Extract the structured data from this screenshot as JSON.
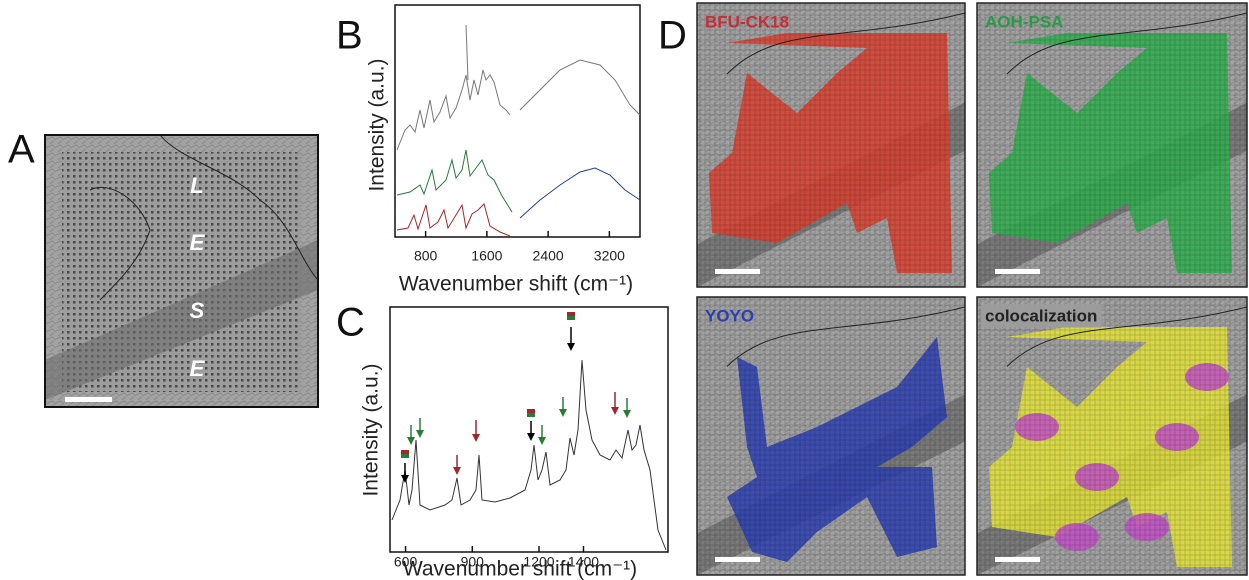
{
  "panels": {
    "A": {
      "label": "A",
      "annotations": [
        "L",
        "E",
        "S",
        "E"
      ]
    },
    "B": {
      "label": "B",
      "ylabel": "Intensity (a.u.)",
      "xlabel": "Wavenumber shift (cm⁻¹)",
      "xlim": [
        400,
        3600
      ],
      "xticks": [
        800,
        1600,
        2400,
        3200
      ]
    },
    "C": {
      "label": "C",
      "ylabel": "Intensity (a.u.)",
      "xlabel": "Wavenumber shift (cm⁻¹)",
      "xlim": [
        530,
        1780
      ],
      "xticks": [
        600,
        900,
        1200,
        1400
      ]
    },
    "D": {
      "label": "D",
      "images": [
        "BFU-CK18",
        "AOH-PSA",
        "YOYO",
        "colocalization"
      ]
    }
  }
}
